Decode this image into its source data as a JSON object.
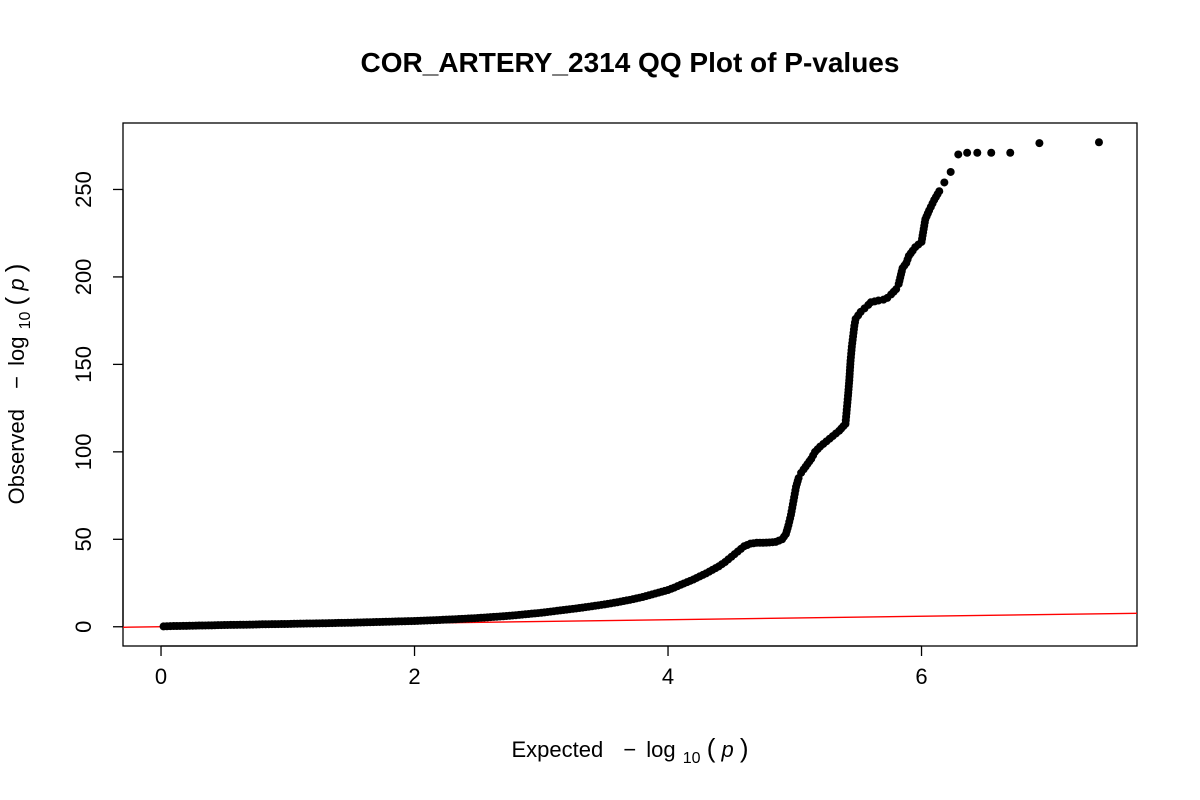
{
  "chart_data": {
    "type": "scatter",
    "title": "COR_ARTERY_2314 QQ Plot of P-values",
    "xlabel": {
      "prefix": "Expected",
      "minus": "−",
      "log": "log",
      "sub": "10",
      "open": "(",
      "var": "p",
      "close": ")"
    },
    "ylabel": {
      "prefix": "Observed",
      "minus": "−",
      "log": "log",
      "sub": "10",
      "open": "(",
      "var": "p",
      "close": ")"
    },
    "xlim": [
      -0.3,
      7.7
    ],
    "ylim": [
      -11,
      288
    ],
    "x_ticks": [
      0,
      2,
      4,
      6
    ],
    "y_ticks": [
      0,
      50,
      100,
      150,
      200,
      250
    ],
    "x_tick_labels": [
      "0",
      "2",
      "4",
      "6"
    ],
    "y_tick_labels": [
      "0",
      "50",
      "100",
      "150",
      "200",
      "250"
    ],
    "point_color": "#000000",
    "reference_line": {
      "color": "#ff0000",
      "from": [
        -0.3,
        -0.3
      ],
      "to": [
        7.7,
        7.7
      ]
    },
    "series": [
      {
        "x": [
          0.02,
          0.1,
          0.2,
          0.3,
          0.4,
          0.5,
          0.6,
          0.7,
          0.8,
          0.9,
          1.0,
          1.1,
          1.2,
          1.3,
          1.4,
          1.5,
          1.6,
          1.7,
          1.8,
          1.9,
          2.0,
          2.1,
          2.2,
          2.3,
          2.4,
          2.5,
          2.6,
          2.7,
          2.8,
          2.9,
          3.0,
          3.1,
          3.2,
          3.3,
          3.4,
          3.5,
          3.6,
          3.7,
          3.8,
          3.9,
          4.0,
          4.05,
          4.1,
          4.15,
          4.2,
          4.25,
          4.3,
          4.35,
          4.4,
          4.45,
          4.5,
          4.55,
          4.6,
          4.65,
          4.7,
          4.75,
          4.8,
          4.85,
          4.9,
          4.93,
          4.95,
          4.97,
          4.99,
          5.01,
          5.03,
          5.05,
          5.07,
          5.1,
          5.13,
          5.16,
          5.2,
          5.25,
          5.3,
          5.35,
          5.4,
          5.41,
          5.42,
          5.43,
          5.44,
          5.45,
          5.46,
          5.47,
          5.48,
          5.5,
          5.52,
          5.55,
          5.58,
          5.6,
          5.63,
          5.66,
          5.7,
          5.73,
          5.76,
          5.8,
          5.82,
          5.85,
          5.88,
          5.9,
          5.93,
          5.95,
          6.0,
          6.03,
          6.06,
          6.1,
          6.14,
          6.18,
          6.23,
          6.29,
          6.36,
          6.44,
          6.55,
          6.7,
          6.93,
          7.4
        ],
        "y": [
          0.2,
          0.4,
          0.5,
          0.7,
          0.8,
          1.0,
          1.1,
          1.2,
          1.4,
          1.5,
          1.6,
          1.8,
          1.9,
          2.0,
          2.2,
          2.3,
          2.5,
          2.7,
          2.9,
          3.1,
          3.3,
          3.6,
          3.9,
          4.2,
          4.6,
          5.0,
          5.5,
          6.0,
          6.6,
          7.3,
          8.0,
          8.9,
          9.8,
          10.7,
          11.7,
          12.8,
          14.0,
          15.4,
          17.0,
          19.0,
          21.0,
          22.4,
          24.0,
          25.5,
          27.0,
          28.8,
          30.5,
          32.5,
          34.5,
          37.0,
          40.0,
          43.0,
          46.0,
          47.5,
          48.0,
          48.0,
          48.2,
          48.5,
          50.0,
          53.0,
          58.0,
          64.0,
          72.0,
          80.0,
          85.0,
          88.0,
          90.0,
          93.0,
          96.0,
          100.0,
          103.0,
          106.0,
          109.0,
          112.0,
          116.0,
          124.0,
          132.0,
          141.0,
          152.0,
          160.0,
          166.0,
          172.0,
          176.0,
          178.0,
          180.0,
          182.0,
          184.0,
          185.5,
          186.0,
          186.5,
          187.0,
          188.0,
          190.0,
          193.0,
          196.0,
          205.0,
          208.0,
          212.0,
          215.0,
          217.0,
          220.0,
          233.0,
          238.0,
          244.0,
          249.0,
          254.0,
          260.0,
          270.0,
          271.0,
          271.0,
          271.0,
          271.0,
          276.5,
          277.0
        ]
      }
    ]
  }
}
